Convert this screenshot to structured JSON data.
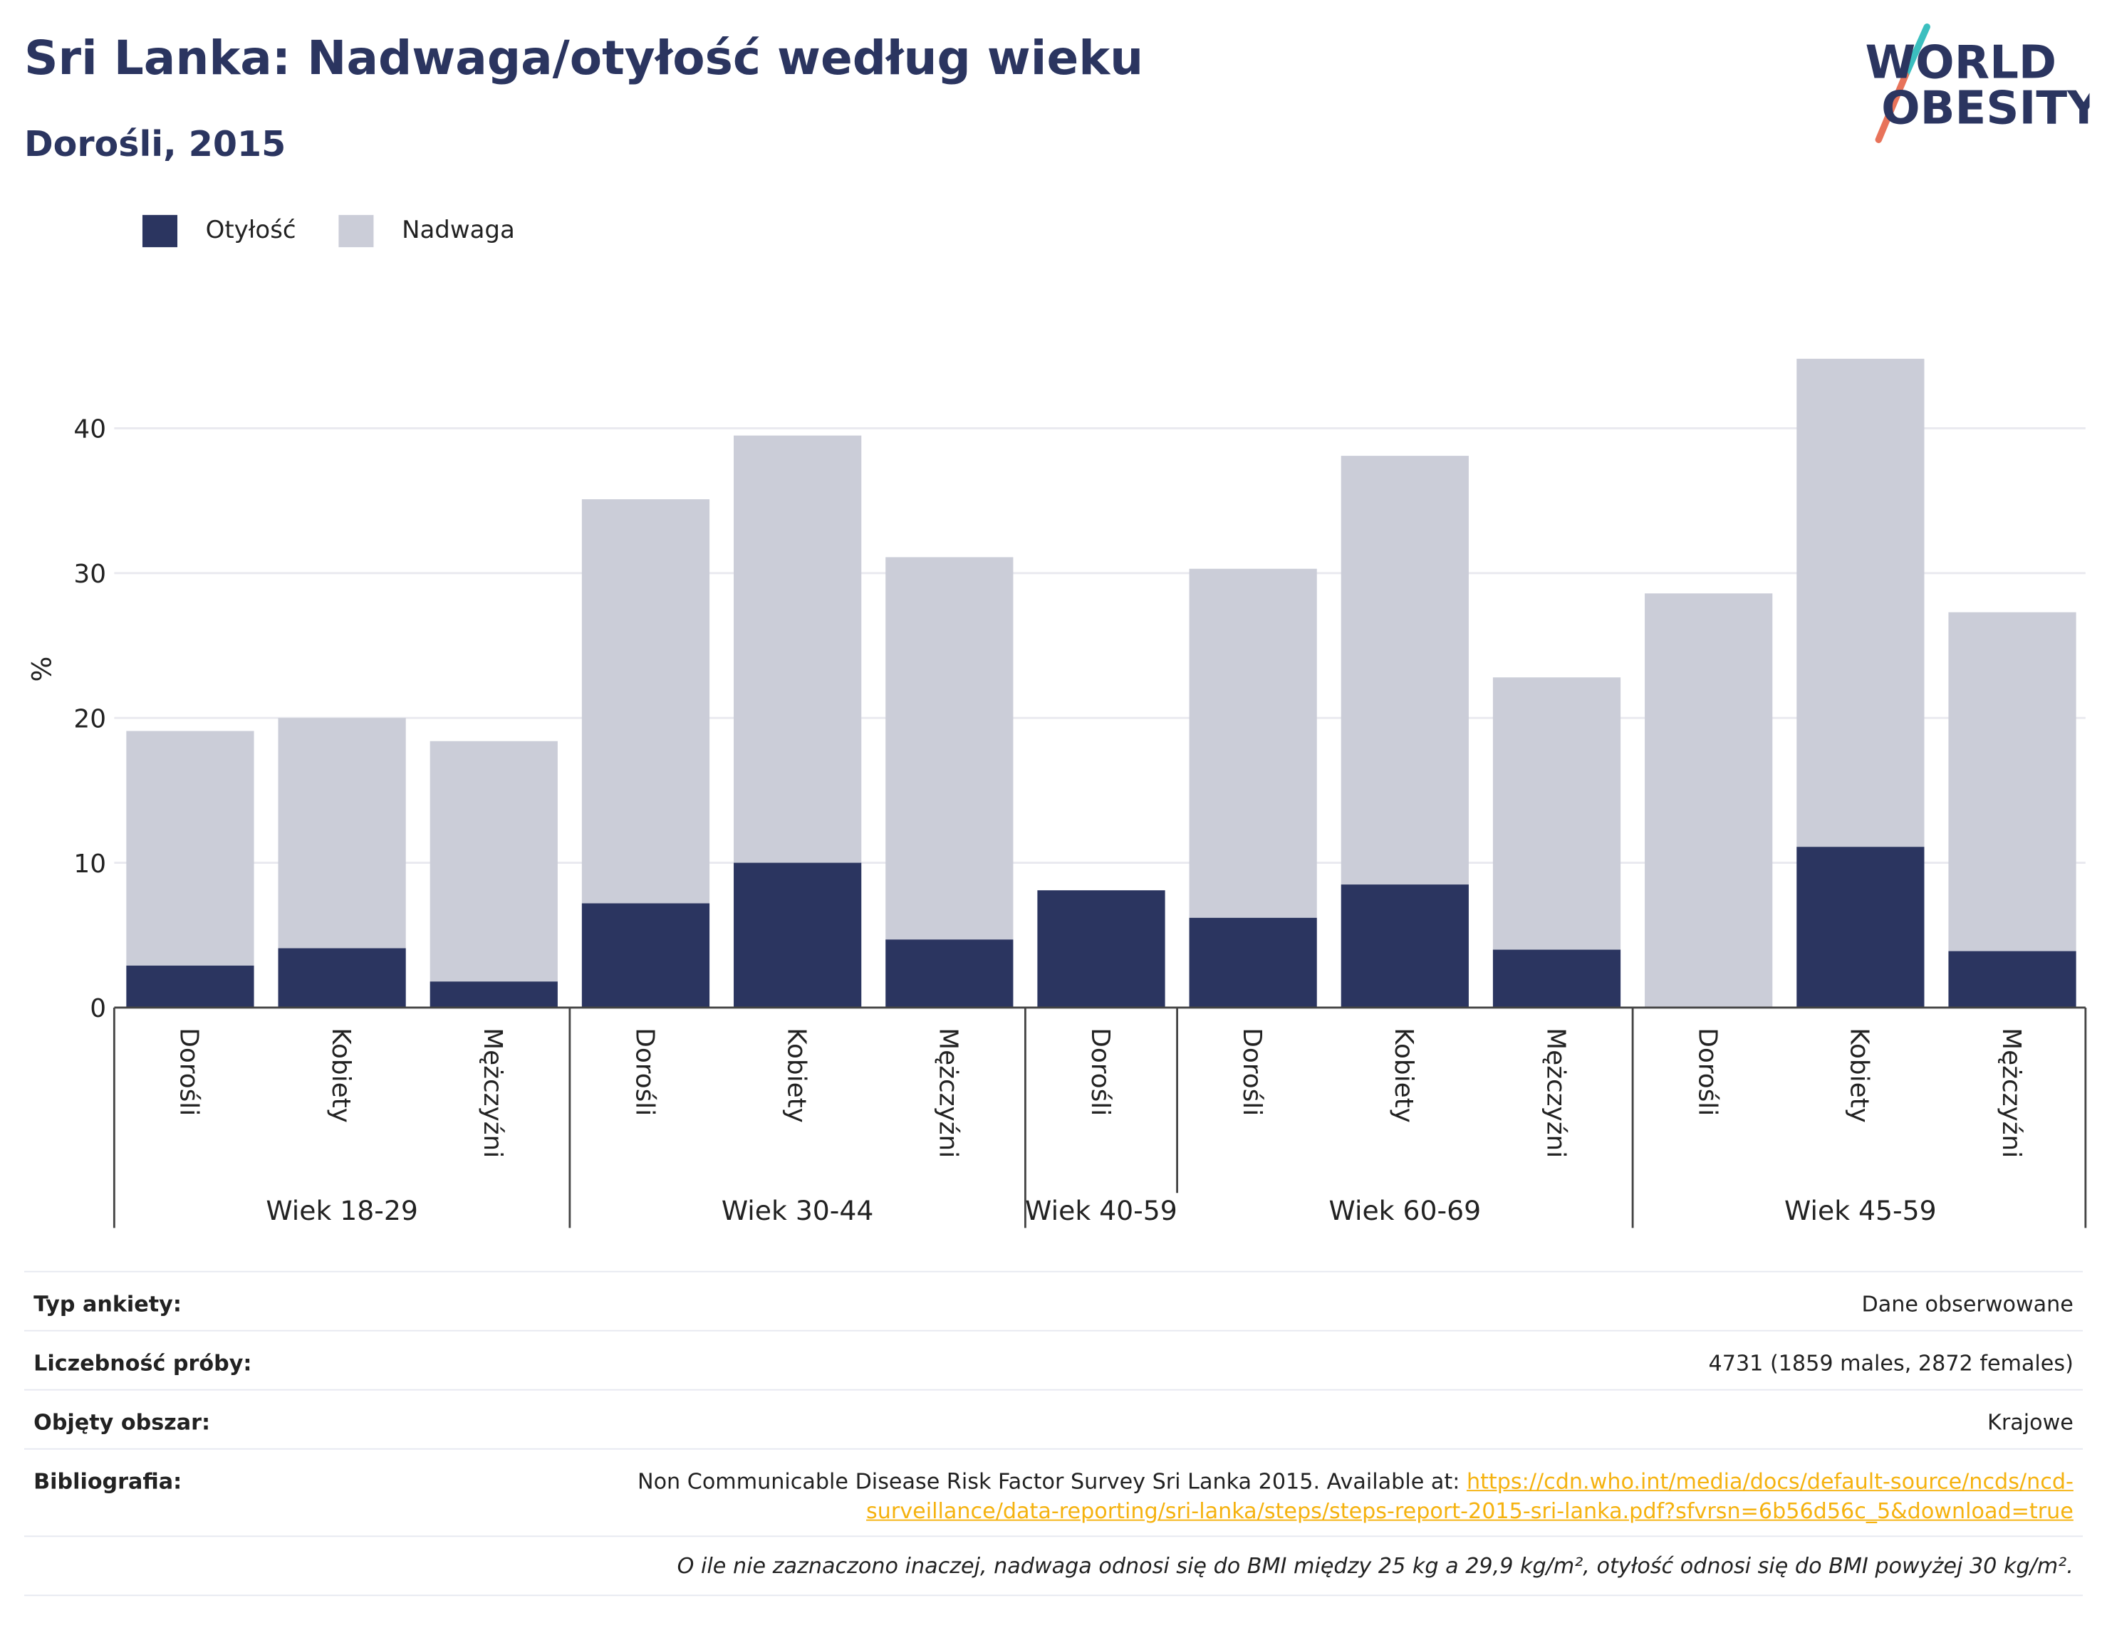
{
  "title": "Sri Lanka: Nadwaga/otyłość według wieku",
  "subtitle": "Dorośli, 2015",
  "logo": {
    "line1": "WORLD",
    "line2": "OBESITY"
  },
  "colors": {
    "obesity": "#2b3560",
    "overweight": "#cbcdd8",
    "title": "#2b3560",
    "link": "#f5b20f",
    "grid": "#e9e9ef"
  },
  "legend": [
    {
      "label": "Otyłość",
      "color": "#2b3560"
    },
    {
      "label": "Nadwaga",
      "color": "#cbcdd8"
    }
  ],
  "chart_data": {
    "type": "bar",
    "stacked": true,
    "ylabel": "%",
    "ylim": [
      0,
      45
    ],
    "yticks": [
      0,
      10,
      20,
      30,
      40
    ],
    "grid": true,
    "legend_position": "top-left",
    "groups": [
      {
        "label": "Wiek 18-29",
        "categories": [
          "Dorośli",
          "Kobiety",
          "Mężczyźni"
        ]
      },
      {
        "label": "Wiek 30-44",
        "categories": [
          "Dorośli",
          "Kobiety",
          "Mężczyźni"
        ]
      },
      {
        "label": "Wiek 40-59",
        "categories": [
          "Dorośli"
        ]
      },
      {
        "label": "Wiek 60-69",
        "categories": [
          "Dorośli",
          "Kobiety",
          "Mężczyźni"
        ]
      },
      {
        "label": "Wiek 45-59",
        "categories": [
          "Dorośli",
          "Kobiety",
          "Mężczyźni"
        ]
      }
    ],
    "series": [
      {
        "name": "Otyłość",
        "values": [
          2.9,
          4.1,
          1.8,
          7.2,
          10.0,
          4.7,
          8.1,
          6.2,
          8.5,
          4.0,
          0,
          11.1,
          3.9
        ]
      },
      {
        "name": "Nadwaga",
        "values": [
          16.2,
          15.9,
          16.6,
          27.9,
          29.5,
          26.4,
          0,
          24.1,
          29.6,
          18.8,
          28.6,
          33.7,
          23.4
        ]
      }
    ]
  },
  "info": {
    "survey_type": {
      "label": "Typ ankiety:",
      "value": "Dane obserwowane"
    },
    "sample_size": {
      "label": "Liczebność próby:",
      "value": "4731 (1859 males, 2872 females)"
    },
    "area": {
      "label": "Objęty obszar:",
      "value": "Krajowe"
    },
    "bibliography": {
      "label": "Bibliografia:",
      "text": "Non Communicable Disease Risk Factor Survey Sri Lanka 2015. Available at: ",
      "link_line1": "https://cdn.who.int/media/docs/default-source/ncds/ncd-",
      "link_line2": "surveillance/data-reporting/sri-lanka/steps/steps-report-2015-sri-lanka.pdf?sfvrsn=6b56d56c_5&download=true"
    },
    "note": "O ile nie zaznaczono inaczej, nadwaga odnosi się do BMI między 25 kg a 29,9 kg/m², otyłość odnosi się do BMI powyżej 30 kg/m²."
  }
}
